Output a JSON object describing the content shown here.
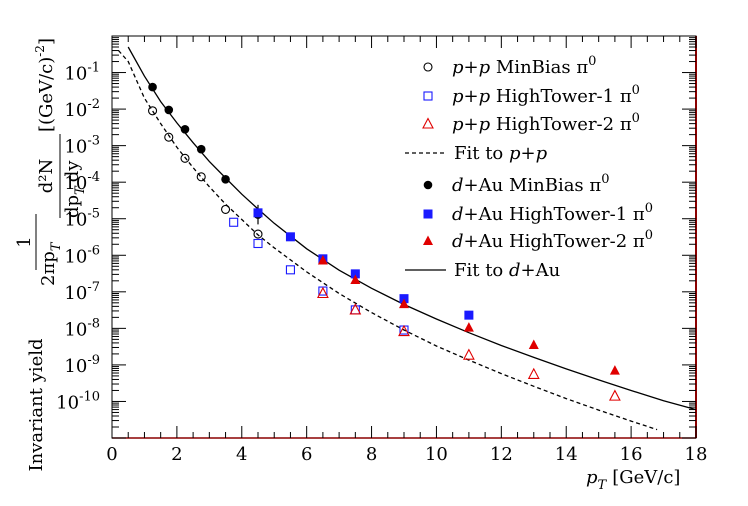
{
  "chart_data": {
    "type": "scatter",
    "title": "",
    "xlabel": "p_T [GeV/c]",
    "ylabel": "(1/2πp_T) d²N/dp_T dy [(GeV/c)^-2]",
    "ylabel_secondary": "Invariant yield",
    "xlim": [
      0,
      18
    ],
    "ylim": [
      1e-11,
      1
    ],
    "yscale": "log",
    "x_ticks": [
      0,
      2,
      4,
      6,
      8,
      10,
      12,
      14,
      16,
      18
    ],
    "y_ticks": [
      {
        "value": 1e-10,
        "label": "10^{-10}"
      },
      {
        "value": 1e-09,
        "label": "10^{-9}"
      },
      {
        "value": 1e-08,
        "label": "10^{-8}"
      },
      {
        "value": 1e-07,
        "label": "10^{-7}"
      },
      {
        "value": 1e-06,
        "label": "10^{-6}"
      },
      {
        "value": 1e-05,
        "label": "10^{-5}"
      },
      {
        "value": 0.0001,
        "label": "10^{-4}"
      },
      {
        "value": 0.001,
        "label": "10^{-3}"
      },
      {
        "value": 0.01,
        "label": "10^{-2}"
      },
      {
        "value": 0.1,
        "label": "10^{-1}"
      }
    ],
    "legend_position": "top-right",
    "series": [
      {
        "name": "p+p MinBias π0",
        "key": "pp_mb",
        "marker": "open-circle",
        "color": "#000000",
        "x": [
          1.25,
          1.75,
          2.25,
          2.75,
          3.5,
          4.5
        ],
        "y": [
          0.009,
          0.0017,
          0.00045,
          0.00014,
          1.8e-05,
          3.8e-06
        ]
      },
      {
        "name": "p+p HighTower-1 π0",
        "key": "pp_ht1",
        "marker": "open-square",
        "color": "#1a1aff",
        "x": [
          3.75,
          4.5,
          5.5,
          6.5,
          7.5,
          9.0
        ],
        "y": [
          8e-06,
          2.1e-06,
          4e-07,
          1.05e-07,
          3.2e-08,
          9e-09
        ]
      },
      {
        "name": "p+p HighTower-2 π0",
        "key": "pp_ht2",
        "marker": "open-triangle",
        "color": "#e00000",
        "x": [
          6.5,
          7.5,
          9.0,
          11.0,
          13.0,
          15.5
        ],
        "y": [
          9e-08,
          3.2e-08,
          8.2e-09,
          1.85e-09,
          5.5e-10,
          1.4e-10
        ]
      },
      {
        "name": "d+Au MinBias π0",
        "key": "dau_mb",
        "marker": "filled-circle",
        "color": "#000000",
        "x": [
          1.25,
          1.75,
          2.25,
          2.75,
          3.5,
          4.5
        ],
        "y": [
          0.04,
          0.0095,
          0.0028,
          0.0008,
          0.00012,
          1.3e-05
        ],
        "err_high": [
          null,
          null,
          null,
          null,
          null,
          2.4e-05
        ],
        "err_low": [
          null,
          null,
          null,
          null,
          null,
          7e-06
        ]
      },
      {
        "name": "d+Au HighTower-1 π0",
        "key": "dau_ht1",
        "marker": "filled-square",
        "color": "#1a1aff",
        "x": [
          4.5,
          5.5,
          6.5,
          7.5,
          9.0,
          11.0
        ],
        "y": [
          1.45e-05,
          3.2e-06,
          8e-07,
          3.1e-07,
          6.5e-08,
          2.3e-08
        ]
      },
      {
        "name": "d+Au HighTower-2 π0",
        "key": "dau_ht2",
        "marker": "filled-triangle",
        "color": "#e00000",
        "x": [
          6.5,
          7.5,
          9.0,
          11.0,
          13.0,
          15.5
        ],
        "y": [
          7.2e-07,
          2.1e-07,
          4.6e-08,
          1.05e-08,
          3.5e-09,
          7e-10
        ]
      }
    ],
    "fits": [
      {
        "name": "Fit to p+p",
        "key": "pp_fit",
        "style": "dashed",
        "color": "#000000",
        "x": [
          0.2,
          0.5,
          1,
          1.5,
          2,
          2.5,
          3,
          3.5,
          4,
          4.5,
          5,
          6,
          7,
          8,
          9,
          10,
          11,
          12,
          13,
          14,
          15,
          16,
          16.8
        ],
        "y": [
          0.4,
          0.2,
          0.02,
          0.004,
          0.0009,
          0.00025,
          7.5e-05,
          2.5e-05,
          9.5e-06,
          3.6e-06,
          1.6e-06,
          3.5e-07,
          9e-08,
          2.7e-08,
          9e-09,
          3.3e-09,
          1.35e-09,
          5.8e-10,
          2.6e-10,
          1.2e-10,
          5.8e-11,
          2.9e-11,
          1.7e-11
        ]
      },
      {
        "name": "Fit to d+Au",
        "key": "dau_fit",
        "style": "solid",
        "color": "#000000",
        "x": [
          0.5,
          1,
          1.5,
          2,
          2.5,
          3,
          3.5,
          4,
          4.5,
          5,
          6,
          7,
          8,
          9,
          10,
          11,
          12,
          13,
          14,
          15,
          16,
          17,
          18
        ],
        "y": [
          0.5,
          0.08,
          0.016,
          0.0042,
          0.0012,
          0.00037,
          0.00013,
          4.7e-05,
          1.85e-05,
          7.5e-06,
          1.5e-06,
          3.9e-07,
          1.25e-07,
          4.5e-08,
          1.8e-08,
          7.6e-09,
          3.4e-09,
          1.6e-09,
          7.8e-10,
          3.9e-10,
          2e-10,
          1.05e-10,
          6e-11
        ]
      }
    ],
    "legend": [
      {
        "key": "pp_mb",
        "pre": "p",
        "mid": "+",
        "post": "p",
        "rest": " MinBias π",
        "sup": "0"
      },
      {
        "key": "pp_ht1",
        "pre": "p",
        "mid": "+",
        "post": "p",
        "rest": " HighTower-1 π",
        "sup": "0"
      },
      {
        "key": "pp_ht2",
        "pre": "p",
        "mid": "+",
        "post": "p",
        "rest": " HighTower-2 π",
        "sup": "0"
      },
      {
        "key": "pp_fit",
        "text": "Fit to ",
        "it1": "p",
        "mid": "+",
        "it2": "p"
      },
      {
        "key": "dau_mb",
        "pre": "d",
        "mid": "+Au",
        "post": "",
        "rest": " MinBias π",
        "sup": "0"
      },
      {
        "key": "dau_ht1",
        "pre": "d",
        "mid": "+Au",
        "post": "",
        "rest": " HighTower-1 π",
        "sup": "0"
      },
      {
        "key": "dau_ht2",
        "pre": "d",
        "mid": "+Au",
        "post": "",
        "rest": " HighTower-2 π",
        "sup": "0"
      },
      {
        "key": "dau_fit",
        "text": "Fit to ",
        "it1": "d",
        "mid": "+Au",
        "it2": ""
      }
    ]
  },
  "labels": {
    "x_axis_p": "p",
    "x_axis_sub": "T",
    "x_axis_unit": "[GeV/c]",
    "y_axis_one": "1",
    "y_axis_twopi": "2πp",
    "y_axis_T": "T",
    "y_axis_d2N": "d²N",
    "y_axis_dpT": "dp",
    "y_axis_dy": "dy",
    "y_axis_unit": "[(GeV/c)",
    "y_axis_unit_exp": "-2",
    "y_axis_unit_close": "]",
    "invariant_yield": "Invariant yield"
  }
}
